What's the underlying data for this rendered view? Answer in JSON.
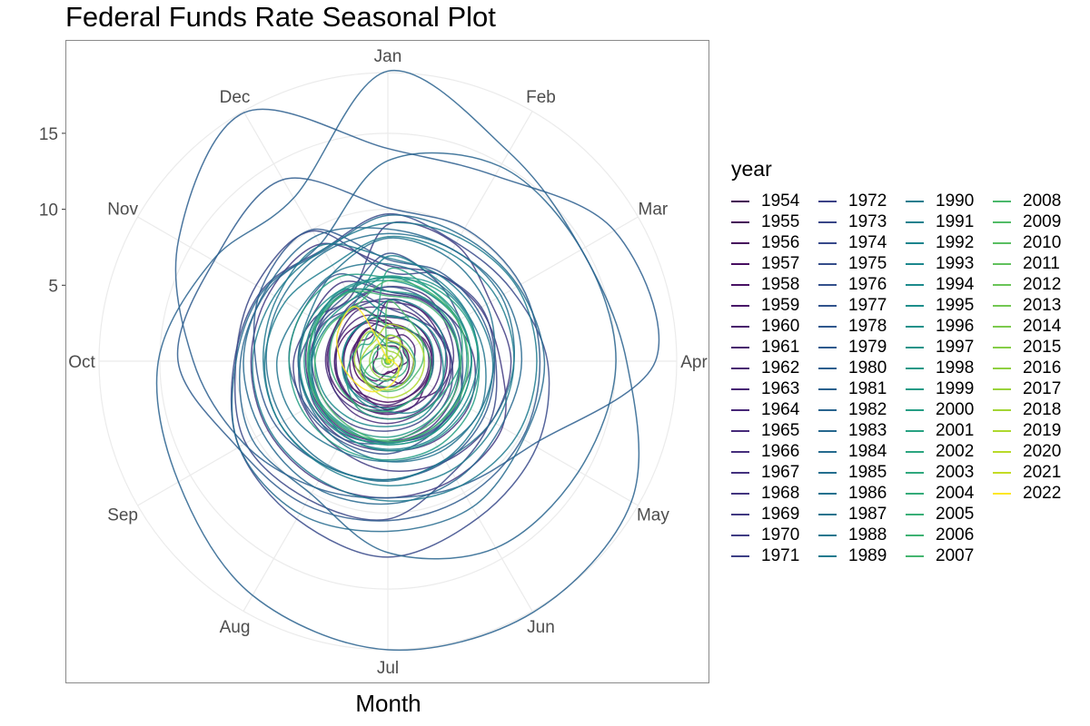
{
  "title": "Federal Funds Rate Seasonal Plot",
  "chart_data": {
    "type": "line",
    "coord": "polar",
    "title": "Federal Funds Rate Seasonal Plot",
    "xlabel": "Month",
    "ylabel": "",
    "theta_labels": [
      "Jan",
      "Feb",
      "Mar",
      "Apr",
      "May",
      "Jun",
      "Jul",
      "Aug",
      "Sep",
      "Oct",
      "Nov",
      "Dec"
    ],
    "r_ticks": [
      5,
      10,
      15
    ],
    "r_max": 19,
    "grid": true,
    "legend_title": "year",
    "legend_position": "right",
    "series": [
      {
        "name": "1954",
        "color": "#440154",
        "values": [
          1.0,
          1.1,
          1.0,
          0.9,
          0.8,
          0.7,
          0.8,
          1.0,
          1.1,
          0.9,
          0.8,
          1.2
        ]
      },
      {
        "name": "1955",
        "color": "#450458",
        "values": [
          1.4,
          1.3,
          1.4,
          1.4,
          1.5,
          1.6,
          1.7,
          1.9,
          2.2,
          2.3,
          2.4,
          2.5
        ]
      },
      {
        "name": "1956",
        "color": "#46085c",
        "values": [
          2.5,
          2.5,
          2.6,
          2.8,
          2.8,
          2.7,
          2.7,
          2.7,
          3.0,
          3.0,
          2.9,
          3.0
        ]
      },
      {
        "name": "1957",
        "color": "#470d60",
        "values": [
          3.0,
          3.0,
          3.0,
          3.0,
          3.0,
          3.0,
          3.0,
          3.3,
          3.5,
          3.5,
          3.3,
          3.0
        ]
      },
      {
        "name": "1958",
        "color": "#481164",
        "values": [
          2.7,
          1.7,
          1.2,
          1.3,
          0.8,
          0.9,
          0.7,
          1.5,
          1.8,
          1.9,
          2.3,
          2.5
        ]
      },
      {
        "name": "1959",
        "color": "#481568",
        "values": [
          2.5,
          2.4,
          2.8,
          2.9,
          2.9,
          3.4,
          3.5,
          3.5,
          3.8,
          4.0,
          4.0,
          4.0
        ]
      },
      {
        "name": "1960",
        "color": "#48186c",
        "values": [
          4.0,
          4.0,
          3.8,
          3.9,
          3.8,
          3.0,
          3.2,
          2.8,
          2.6,
          2.5,
          2.4,
          2.0
        ]
      },
      {
        "name": "1961",
        "color": "#481c6e",
        "values": [
          1.5,
          2.0,
          2.0,
          1.7,
          1.7,
          1.7,
          1.2,
          2.0,
          1.9,
          2.3,
          2.3,
          2.5
        ]
      },
      {
        "name": "1962",
        "color": "#482071",
        "values": [
          2.2,
          2.4,
          2.7,
          2.7,
          2.7,
          2.7,
          2.9,
          2.9,
          2.9,
          2.9,
          2.9,
          2.9
        ]
      },
      {
        "name": "1963",
        "color": "#472374",
        "values": [
          2.9,
          3.0,
          3.0,
          2.9,
          2.9,
          3.0,
          3.2,
          3.5,
          3.4,
          3.5,
          3.5,
          3.4
        ]
      },
      {
        "name": "1964",
        "color": "#472777",
        "values": [
          3.5,
          3.5,
          3.4,
          3.5,
          3.5,
          3.4,
          3.4,
          3.5,
          3.5,
          3.4,
          3.6,
          3.9
        ]
      },
      {
        "name": "1965",
        "color": "#462a79",
        "values": [
          3.9,
          4.0,
          4.0,
          4.1,
          4.1,
          4.0,
          4.1,
          4.1,
          4.0,
          4.1,
          4.1,
          4.3
        ]
      },
      {
        "name": "1966",
        "color": "#452e7b",
        "values": [
          4.4,
          4.6,
          4.7,
          4.7,
          4.9,
          5.2,
          5.3,
          5.4,
          5.4,
          5.4,
          5.5,
          5.4
        ]
      },
      {
        "name": "1967",
        "color": "#44317d",
        "values": [
          4.9,
          5.0,
          4.5,
          4.3,
          3.9,
          3.9,
          3.8,
          3.8,
          4.0,
          3.9,
          4.1,
          4.5
        ]
      },
      {
        "name": "1968",
        "color": "#42357f",
        "values": [
          4.6,
          4.7,
          5.1,
          5.7,
          6.1,
          6.1,
          5.9,
          5.9,
          5.8,
          5.9,
          5.8,
          6.0
        ]
      },
      {
        "name": "1969",
        "color": "#413881",
        "values": [
          6.3,
          6.6,
          7.0,
          7.4,
          8.7,
          8.9,
          9.0,
          9.1,
          9.1,
          9.0,
          9.0,
          8.9
        ]
      },
      {
        "name": "1970",
        "color": "#3f3c83",
        "values": [
          9.0,
          8.9,
          7.8,
          8.1,
          7.9,
          7.6,
          7.2,
          6.6,
          6.3,
          6.2,
          5.6,
          4.9
        ]
      },
      {
        "name": "1971",
        "color": "#3d3f85",
        "values": [
          4.1,
          3.7,
          3.7,
          4.2,
          4.6,
          4.9,
          5.3,
          5.6,
          5.6,
          5.2,
          4.9,
          4.1
        ]
      },
      {
        "name": "1972",
        "color": "#3b4286",
        "values": [
          3.5,
          3.3,
          3.8,
          4.2,
          4.3,
          4.5,
          4.6,
          4.8,
          4.9,
          5.0,
          5.1,
          5.3
        ]
      },
      {
        "name": "1973",
        "color": "#394687",
        "values": [
          5.9,
          6.6,
          7.1,
          7.1,
          7.8,
          8.5,
          10.4,
          10.5,
          10.8,
          10.0,
          10.0,
          9.9
        ]
      },
      {
        "name": "1974",
        "color": "#37498a",
        "values": [
          9.7,
          9.0,
          9.4,
          10.5,
          11.3,
          11.9,
          12.9,
          12.0,
          11.3,
          10.1,
          9.5,
          8.5
        ]
      },
      {
        "name": "1975",
        "color": "#354d8a",
        "values": [
          7.1,
          6.2,
          5.5,
          5.5,
          5.2,
          5.6,
          6.1,
          6.1,
          6.2,
          5.8,
          5.2,
          5.2
        ]
      },
      {
        "name": "1976",
        "color": "#33508b",
        "values": [
          4.9,
          4.8,
          5.0,
          4.9,
          5.3,
          5.5,
          5.3,
          5.3,
          5.3,
          5.0,
          5.0,
          4.7
        ]
      },
      {
        "name": "1977",
        "color": "#31538c",
        "values": [
          4.6,
          4.7,
          4.7,
          4.7,
          5.4,
          5.4,
          5.4,
          5.9,
          6.1,
          6.5,
          6.5,
          6.6
        ]
      },
      {
        "name": "1978",
        "color": "#2f578d",
        "values": [
          6.7,
          6.8,
          6.8,
          7.0,
          7.3,
          7.6,
          7.8,
          8.0,
          8.5,
          8.7,
          9.6,
          10.0
        ]
      },
      {
        "name": "1979",
        "color": "#2d5a8d",
        "values": [
          10.1,
          10.1,
          10.1,
          10.0,
          10.2,
          10.3,
          10.5,
          10.9,
          11.4,
          13.8,
          13.2,
          13.8
        ]
      },
      {
        "name": "1980",
        "color": "#2b5e8e",
        "values": [
          14.0,
          14.1,
          17.2,
          17.6,
          11.0,
          9.5,
          9.0,
          9.6,
          10.9,
          12.8,
          15.9,
          18.9
        ]
      },
      {
        "name": "1981",
        "color": "#29618e",
        "values": [
          19.1,
          15.9,
          14.7,
          15.7,
          18.5,
          19.1,
          19.0,
          17.8,
          15.9,
          15.1,
          13.3,
          12.4
        ]
      },
      {
        "name": "1982",
        "color": "#28648e",
        "values": [
          13.2,
          14.8,
          14.7,
          15.0,
          14.5,
          14.2,
          12.6,
          10.1,
          10.3,
          9.7,
          9.2,
          8.9
        ]
      },
      {
        "name": "1983",
        "color": "#26678e",
        "values": [
          8.7,
          8.5,
          8.8,
          8.8,
          8.6,
          9.0,
          9.4,
          9.6,
          9.5,
          9.5,
          9.3,
          9.5
        ]
      },
      {
        "name": "1984",
        "color": "#256a8e",
        "values": [
          9.6,
          9.6,
          9.9,
          10.3,
          10.3,
          11.1,
          11.2,
          11.6,
          11.3,
          9.99,
          9.4,
          8.4
        ]
      },
      {
        "name": "1985",
        "color": "#236e8e",
        "values": [
          8.4,
          8.5,
          8.6,
          8.3,
          7.9,
          7.5,
          7.9,
          7.9,
          7.9,
          8.0,
          8.1,
          8.3
        ]
      },
      {
        "name": "1986",
        "color": "#22718e",
        "values": [
          8.1,
          7.9,
          7.5,
          7.0,
          6.9,
          6.9,
          6.6,
          6.2,
          5.9,
          5.9,
          6.0,
          6.9
        ]
      },
      {
        "name": "1987",
        "color": "#21748e",
        "values": [
          6.4,
          6.1,
          6.1,
          6.4,
          6.9,
          6.7,
          6.6,
          6.7,
          7.2,
          7.3,
          6.7,
          6.8
        ]
      },
      {
        "name": "1988",
        "color": "#1f778e",
        "values": [
          6.8,
          6.6,
          6.6,
          6.9,
          7.1,
          7.5,
          7.8,
          8.0,
          8.2,
          8.2,
          8.4,
          8.8
        ]
      },
      {
        "name": "1989",
        "color": "#1e7a8e",
        "values": [
          9.1,
          9.4,
          9.8,
          9.8,
          9.8,
          9.5,
          9.2,
          9.0,
          9.0,
          8.9,
          8.6,
          8.5
        ]
      },
      {
        "name": "1990",
        "color": "#1e7d8e",
        "values": [
          8.2,
          8.2,
          8.3,
          8.3,
          8.2,
          8.3,
          8.2,
          8.1,
          8.2,
          8.1,
          7.8,
          7.3
        ]
      },
      {
        "name": "1991",
        "color": "#1d818e",
        "values": [
          6.9,
          6.3,
          6.1,
          5.9,
          5.8,
          5.9,
          5.8,
          5.7,
          5.2,
          5.0,
          4.6,
          4.4
        ]
      },
      {
        "name": "1992",
        "color": "#1c848d",
        "values": [
          4.0,
          4.1,
          4.0,
          3.8,
          3.8,
          3.8,
          3.3,
          3.2,
          3.0,
          3.0,
          3.0,
          3.0
        ]
      },
      {
        "name": "1993",
        "color": "#1c878d",
        "values": [
          3.0,
          3.0,
          3.1,
          3.0,
          3.0,
          3.0,
          3.1,
          3.0,
          3.1,
          3.0,
          3.0,
          3.0
        ]
      },
      {
        "name": "1994",
        "color": "#1c8a8c",
        "values": [
          3.0,
          3.3,
          3.5,
          3.6,
          4.0,
          4.3,
          4.3,
          4.5,
          4.7,
          4.8,
          5.3,
          5.5
        ]
      },
      {
        "name": "1995",
        "color": "#1d8e8b",
        "values": [
          5.5,
          5.9,
          6.0,
          6.0,
          6.0,
          6.0,
          5.9,
          5.7,
          5.8,
          5.8,
          5.8,
          5.6
        ]
      },
      {
        "name": "1996",
        "color": "#1e918a",
        "values": [
          5.6,
          5.2,
          5.3,
          5.2,
          5.2,
          5.3,
          5.4,
          5.2,
          5.3,
          5.2,
          5.3,
          5.3
        ]
      },
      {
        "name": "1997",
        "color": "#1f9489",
        "values": [
          5.3,
          5.2,
          5.4,
          5.5,
          5.5,
          5.6,
          5.5,
          5.5,
          5.5,
          5.5,
          5.5,
          5.5
        ]
      },
      {
        "name": "1998",
        "color": "#209887",
        "values": [
          5.6,
          5.5,
          5.5,
          5.5,
          5.5,
          5.6,
          5.5,
          5.5,
          5.5,
          5.1,
          4.8,
          4.7
        ]
      },
      {
        "name": "1999",
        "color": "#229b86",
        "values": [
          4.6,
          4.8,
          4.8,
          4.7,
          4.7,
          4.8,
          5.0,
          5.1,
          5.2,
          5.2,
          5.4,
          5.3
        ]
      },
      {
        "name": "2000",
        "color": "#259e84",
        "values": [
          5.5,
          5.7,
          5.9,
          6.0,
          6.3,
          6.5,
          6.5,
          6.5,
          6.5,
          6.5,
          6.5,
          6.4
        ]
      },
      {
        "name": "2001",
        "color": "#28a282",
        "values": [
          6.0,
          5.5,
          5.3,
          4.8,
          4.2,
          4.0,
          3.8,
          3.7,
          3.1,
          2.5,
          2.1,
          1.8
        ]
      },
      {
        "name": "2002",
        "color": "#2ba57f",
        "values": [
          1.7,
          1.7,
          1.7,
          1.8,
          1.8,
          1.8,
          1.7,
          1.7,
          1.8,
          1.8,
          1.3,
          1.2
        ]
      },
      {
        "name": "2003",
        "color": "#2fa87d",
        "values": [
          1.2,
          1.3,
          1.3,
          1.3,
          1.3,
          1.2,
          1.0,
          1.0,
          1.0,
          1.0,
          1.0,
          1.0
        ]
      },
      {
        "name": "2004",
        "color": "#34ab7a",
        "values": [
          1.0,
          1.0,
          1.0,
          1.0,
          1.0,
          1.0,
          1.3,
          1.4,
          1.6,
          1.8,
          1.9,
          2.2
        ]
      },
      {
        "name": "2005",
        "color": "#39af77",
        "values": [
          2.3,
          2.5,
          2.6,
          2.8,
          3.0,
          3.0,
          3.3,
          3.5,
          3.6,
          3.8,
          4.0,
          4.2
        ]
      },
      {
        "name": "2006",
        "color": "#3eb273",
        "values": [
          4.3,
          4.5,
          4.6,
          4.8,
          4.9,
          5.0,
          5.2,
          5.3,
          5.3,
          5.3,
          5.3,
          5.2
        ]
      },
      {
        "name": "2007",
        "color": "#44b56f",
        "values": [
          5.3,
          5.3,
          5.3,
          5.3,
          5.3,
          5.3,
          5.3,
          5.0,
          4.9,
          4.8,
          4.5,
          4.2
        ]
      },
      {
        "name": "2008",
        "color": "#4bb86b",
        "values": [
          3.9,
          3.0,
          2.6,
          2.3,
          2.0,
          2.0,
          2.0,
          2.0,
          1.8,
          1.0,
          0.4,
          0.2
        ]
      },
      {
        "name": "2009",
        "color": "#52bb67",
        "values": [
          0.2,
          0.2,
          0.2,
          0.2,
          0.2,
          0.2,
          0.2,
          0.2,
          0.2,
          0.1,
          0.1,
          0.1
        ]
      },
      {
        "name": "2010",
        "color": "#59be62",
        "values": [
          0.1,
          0.1,
          0.2,
          0.2,
          0.2,
          0.2,
          0.2,
          0.2,
          0.2,
          0.2,
          0.2,
          0.2
        ]
      },
      {
        "name": "2011",
        "color": "#61c15d",
        "values": [
          0.2,
          0.2,
          0.1,
          0.1,
          0.1,
          0.1,
          0.1,
          0.1,
          0.1,
          0.1,
          0.1,
          0.1
        ]
      },
      {
        "name": "2012",
        "color": "#6ac458",
        "values": [
          0.1,
          0.1,
          0.1,
          0.1,
          0.2,
          0.2,
          0.2,
          0.1,
          0.1,
          0.2,
          0.2,
          0.2
        ]
      },
      {
        "name": "2013",
        "color": "#73c753",
        "values": [
          0.1,
          0.2,
          0.1,
          0.2,
          0.1,
          0.1,
          0.1,
          0.1,
          0.1,
          0.1,
          0.1,
          0.1
        ]
      },
      {
        "name": "2014",
        "color": "#7cca4d",
        "values": [
          0.1,
          0.1,
          0.1,
          0.1,
          0.1,
          0.1,
          0.1,
          0.1,
          0.1,
          0.1,
          0.1,
          0.1
        ]
      },
      {
        "name": "2015",
        "color": "#85cd47",
        "values": [
          0.1,
          0.1,
          0.1,
          0.1,
          0.1,
          0.1,
          0.1,
          0.1,
          0.1,
          0.1,
          0.1,
          0.2
        ]
      },
      {
        "name": "2016",
        "color": "#8fd041",
        "values": [
          0.3,
          0.4,
          0.4,
          0.4,
          0.4,
          0.4,
          0.4,
          0.4,
          0.4,
          0.4,
          0.4,
          0.5
        ]
      },
      {
        "name": "2017",
        "color": "#99d33b",
        "values": [
          0.7,
          0.7,
          0.8,
          0.9,
          0.9,
          1.0,
          1.2,
          1.2,
          1.2,
          1.2,
          1.2,
          1.3
        ]
      },
      {
        "name": "2018",
        "color": "#a3d535",
        "values": [
          1.4,
          1.4,
          1.5,
          1.7,
          1.7,
          1.8,
          1.9,
          1.9,
          2.0,
          2.2,
          2.2,
          2.3
        ]
      },
      {
        "name": "2019",
        "color": "#aed82f",
        "values": [
          2.4,
          2.4,
          2.4,
          2.4,
          2.4,
          2.4,
          2.4,
          2.1,
          2.0,
          1.8,
          1.6,
          1.6
        ]
      },
      {
        "name": "2020",
        "color": "#b9da29",
        "values": [
          1.6,
          1.6,
          0.7,
          0.1,
          0.1,
          0.1,
          0.1,
          0.1,
          0.1,
          0.1,
          0.1,
          0.1
        ]
      },
      {
        "name": "2021",
        "color": "#c4dc24",
        "values": [
          0.1,
          0.1,
          0.1,
          0.1,
          0.1,
          0.1,
          0.1,
          0.1,
          0.1,
          0.1,
          0.1,
          0.1
        ]
      },
      {
        "name": "2022",
        "color": "#fde725",
        "values": [
          0.1,
          0.1,
          0.2,
          0.3,
          0.8,
          1.2,
          1.7,
          2.3,
          2.6,
          3.1,
          3.8,
          4.1
        ]
      }
    ]
  }
}
